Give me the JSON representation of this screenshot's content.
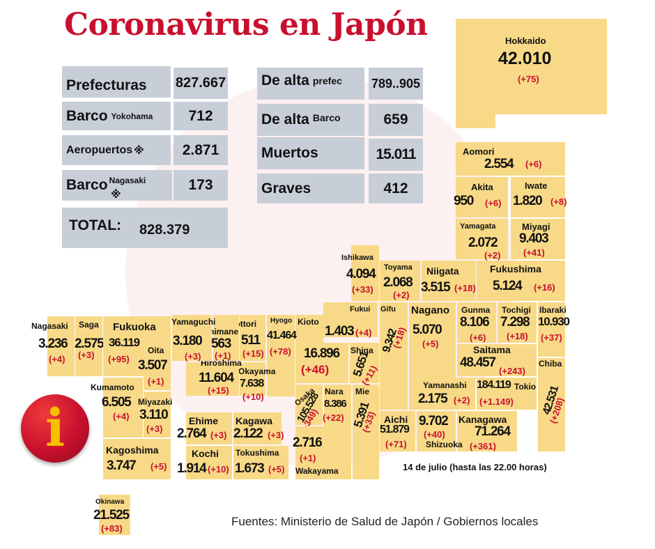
{
  "title": "Coronavirus en Japón",
  "stats": {
    "prefecturas": {
      "label": "Prefecturas",
      "value": "827.667"
    },
    "barco_yokohama": {
      "label": "Barco",
      "sub": "Yokohama",
      "value": "712"
    },
    "aeropuertos": {
      "label": "Aeropuertos",
      "sub": "※",
      "value": "2.871"
    },
    "barco_nagasaki": {
      "label": "Barco",
      "mark": "※",
      "sub": "Nagasaki",
      "value": "173"
    },
    "total": {
      "label": "TOTAL:",
      "value": "828.379"
    },
    "alta_prefec": {
      "label": "De alta",
      "sub": "prefec",
      "value": "789..905"
    },
    "alta_barco": {
      "label": "De alta",
      "sub": "Barco",
      "value": "659"
    },
    "muertos": {
      "label": "Muertos",
      "value": "15.011"
    },
    "graves": {
      "label": "Graves",
      "value": "412"
    }
  },
  "prefs": {
    "hokkaido": {
      "name": "Hokkaido",
      "value": "42.010",
      "change": "(+75)"
    },
    "aomori": {
      "name": "Aomori",
      "value": "2.554",
      "change": "(+6)"
    },
    "akita": {
      "name": "Akita",
      "value": "950",
      "change": "(+6)"
    },
    "iwate": {
      "name": "Iwate",
      "value": "1.820",
      "change": "(+8)"
    },
    "yamagata": {
      "name": "Yamagata",
      "value": "2.072",
      "change": "(+2)"
    },
    "miyagi": {
      "name": "Miyagi",
      "value": "9.403",
      "change": "(+41)"
    },
    "ishikawa": {
      "name": "Ishikawa",
      "value": "4.094",
      "change": "(+33)"
    },
    "toyama": {
      "name": "Toyama",
      "value": "2.068",
      "change": "(+2)"
    },
    "niigata": {
      "name": "Niigata",
      "value": "3.515",
      "change": "(+18)"
    },
    "fukushima": {
      "name": "Fukushima",
      "value": "5.124",
      "change": "(+16)"
    },
    "fukui": {
      "name": "Fukui",
      "value": "1.403",
      "change": "(+4)"
    },
    "gifu": {
      "name": "Gifu",
      "value": "9.342",
      "change": "(+18)"
    },
    "nagano": {
      "name": "Nagano",
      "value": "5.070",
      "change": "(+5)"
    },
    "gunma": {
      "name": "Gunma",
      "value": "8.106",
      "change": "(+6)"
    },
    "tochigi": {
      "name": "Tochigi",
      "value": "7.298",
      "change": "(+18)"
    },
    "ibaraki": {
      "name": "Ibaraki",
      "value": "10.930",
      "change": "(+37)"
    },
    "saitama": {
      "name": "Saitama",
      "value": "48.457",
      "change": "(+243)"
    },
    "chiba": {
      "name": "Chiba",
      "value": "42.531",
      "change": "(+208)"
    },
    "tokio": {
      "name": "Tokio",
      "value": "184.119",
      "change": "(+1.149)"
    },
    "yamanashi": {
      "name": "Yamanashi",
      "value": "2.175",
      "change": "(+2)"
    },
    "kanagawa": {
      "name": "Kanagawa",
      "value": "71.264",
      "change": "(+361)"
    },
    "shizuoka": {
      "name": "Shizuoka",
      "value": "9.702",
      "change": "(+40)"
    },
    "aichi": {
      "name": "Aichi",
      "value": "51.879",
      "change": "(+71)"
    },
    "mie": {
      "name": "Mie",
      "value": "5.391",
      "change": "(+33)"
    },
    "shiga": {
      "name": "Shiga",
      "value": "5.651",
      "change": "(+11)"
    },
    "kioto": {
      "name": "Kioto",
      "value": "16.896",
      "change": "(+46)"
    },
    "nara": {
      "name": "Nara",
      "value": "8.386",
      "change": "(+22)"
    },
    "osaka": {
      "name": "Osaka",
      "value": "105.528",
      "change": "(+349)"
    },
    "wakayama": {
      "name": "Wakayama",
      "value": "2.716",
      "change": "(+1)"
    },
    "hyogo": {
      "name": "Hyogo",
      "value": "41.464",
      "change": "(+78)"
    },
    "tottori": {
      "name": "Tottori",
      "value": "511",
      "change": "(+15)"
    },
    "shimane": {
      "name": "Shimane",
      "value": "563",
      "change": "(+1)"
    },
    "okayama": {
      "name": "Okayama",
      "value": "7.638",
      "change": "(+10)"
    },
    "hiroshima": {
      "name": "Hiroshima",
      "value": "11.604",
      "change": "(+15)"
    },
    "yamaguchi": {
      "name": "Yamaguchi",
      "value": "3.180",
      "change": "(+3)"
    },
    "ehime": {
      "name": "Ehime",
      "value": "2.764",
      "change": "(+3)"
    },
    "kagawa": {
      "name": "Kagawa",
      "value": "2.122",
      "change": "(+3)"
    },
    "kochi": {
      "name": "Kochi",
      "value": "1.914",
      "change": "(+10)"
    },
    "tokushima": {
      "name": "Tokushima",
      "value": "1.673",
      "change": "(+5)"
    },
    "fukuoka": {
      "name": "Fukuoka",
      "value": "36.119",
      "change": "(+95)"
    },
    "saga": {
      "name": "Saga",
      "value": "2.575",
      "change": "(+3)"
    },
    "nagasaki": {
      "name": "Nagasaki",
      "value": "3.236",
      "change": "(+4)"
    },
    "oita": {
      "name": "Oita",
      "value": "3.507",
      "change": "(+1)"
    },
    "kumamoto": {
      "name": "Kumamoto",
      "value": "6.505",
      "change": "(+4)"
    },
    "miyazaki": {
      "name": "Miyazaki",
      "value": "3.110",
      "change": "(+3)"
    },
    "kagoshima": {
      "name": "Kagoshima",
      "value": "3.747",
      "change": "(+5)"
    },
    "okinawa": {
      "name": "Okinawa",
      "value": "21.525",
      "change": "(+83)"
    }
  },
  "info_glyph": "i",
  "date_note": "14 de julio  (hasta las  22.00 horas)",
  "source": "Fuentes: Ministerio de Salud de Japón / Gobiernos locales"
}
